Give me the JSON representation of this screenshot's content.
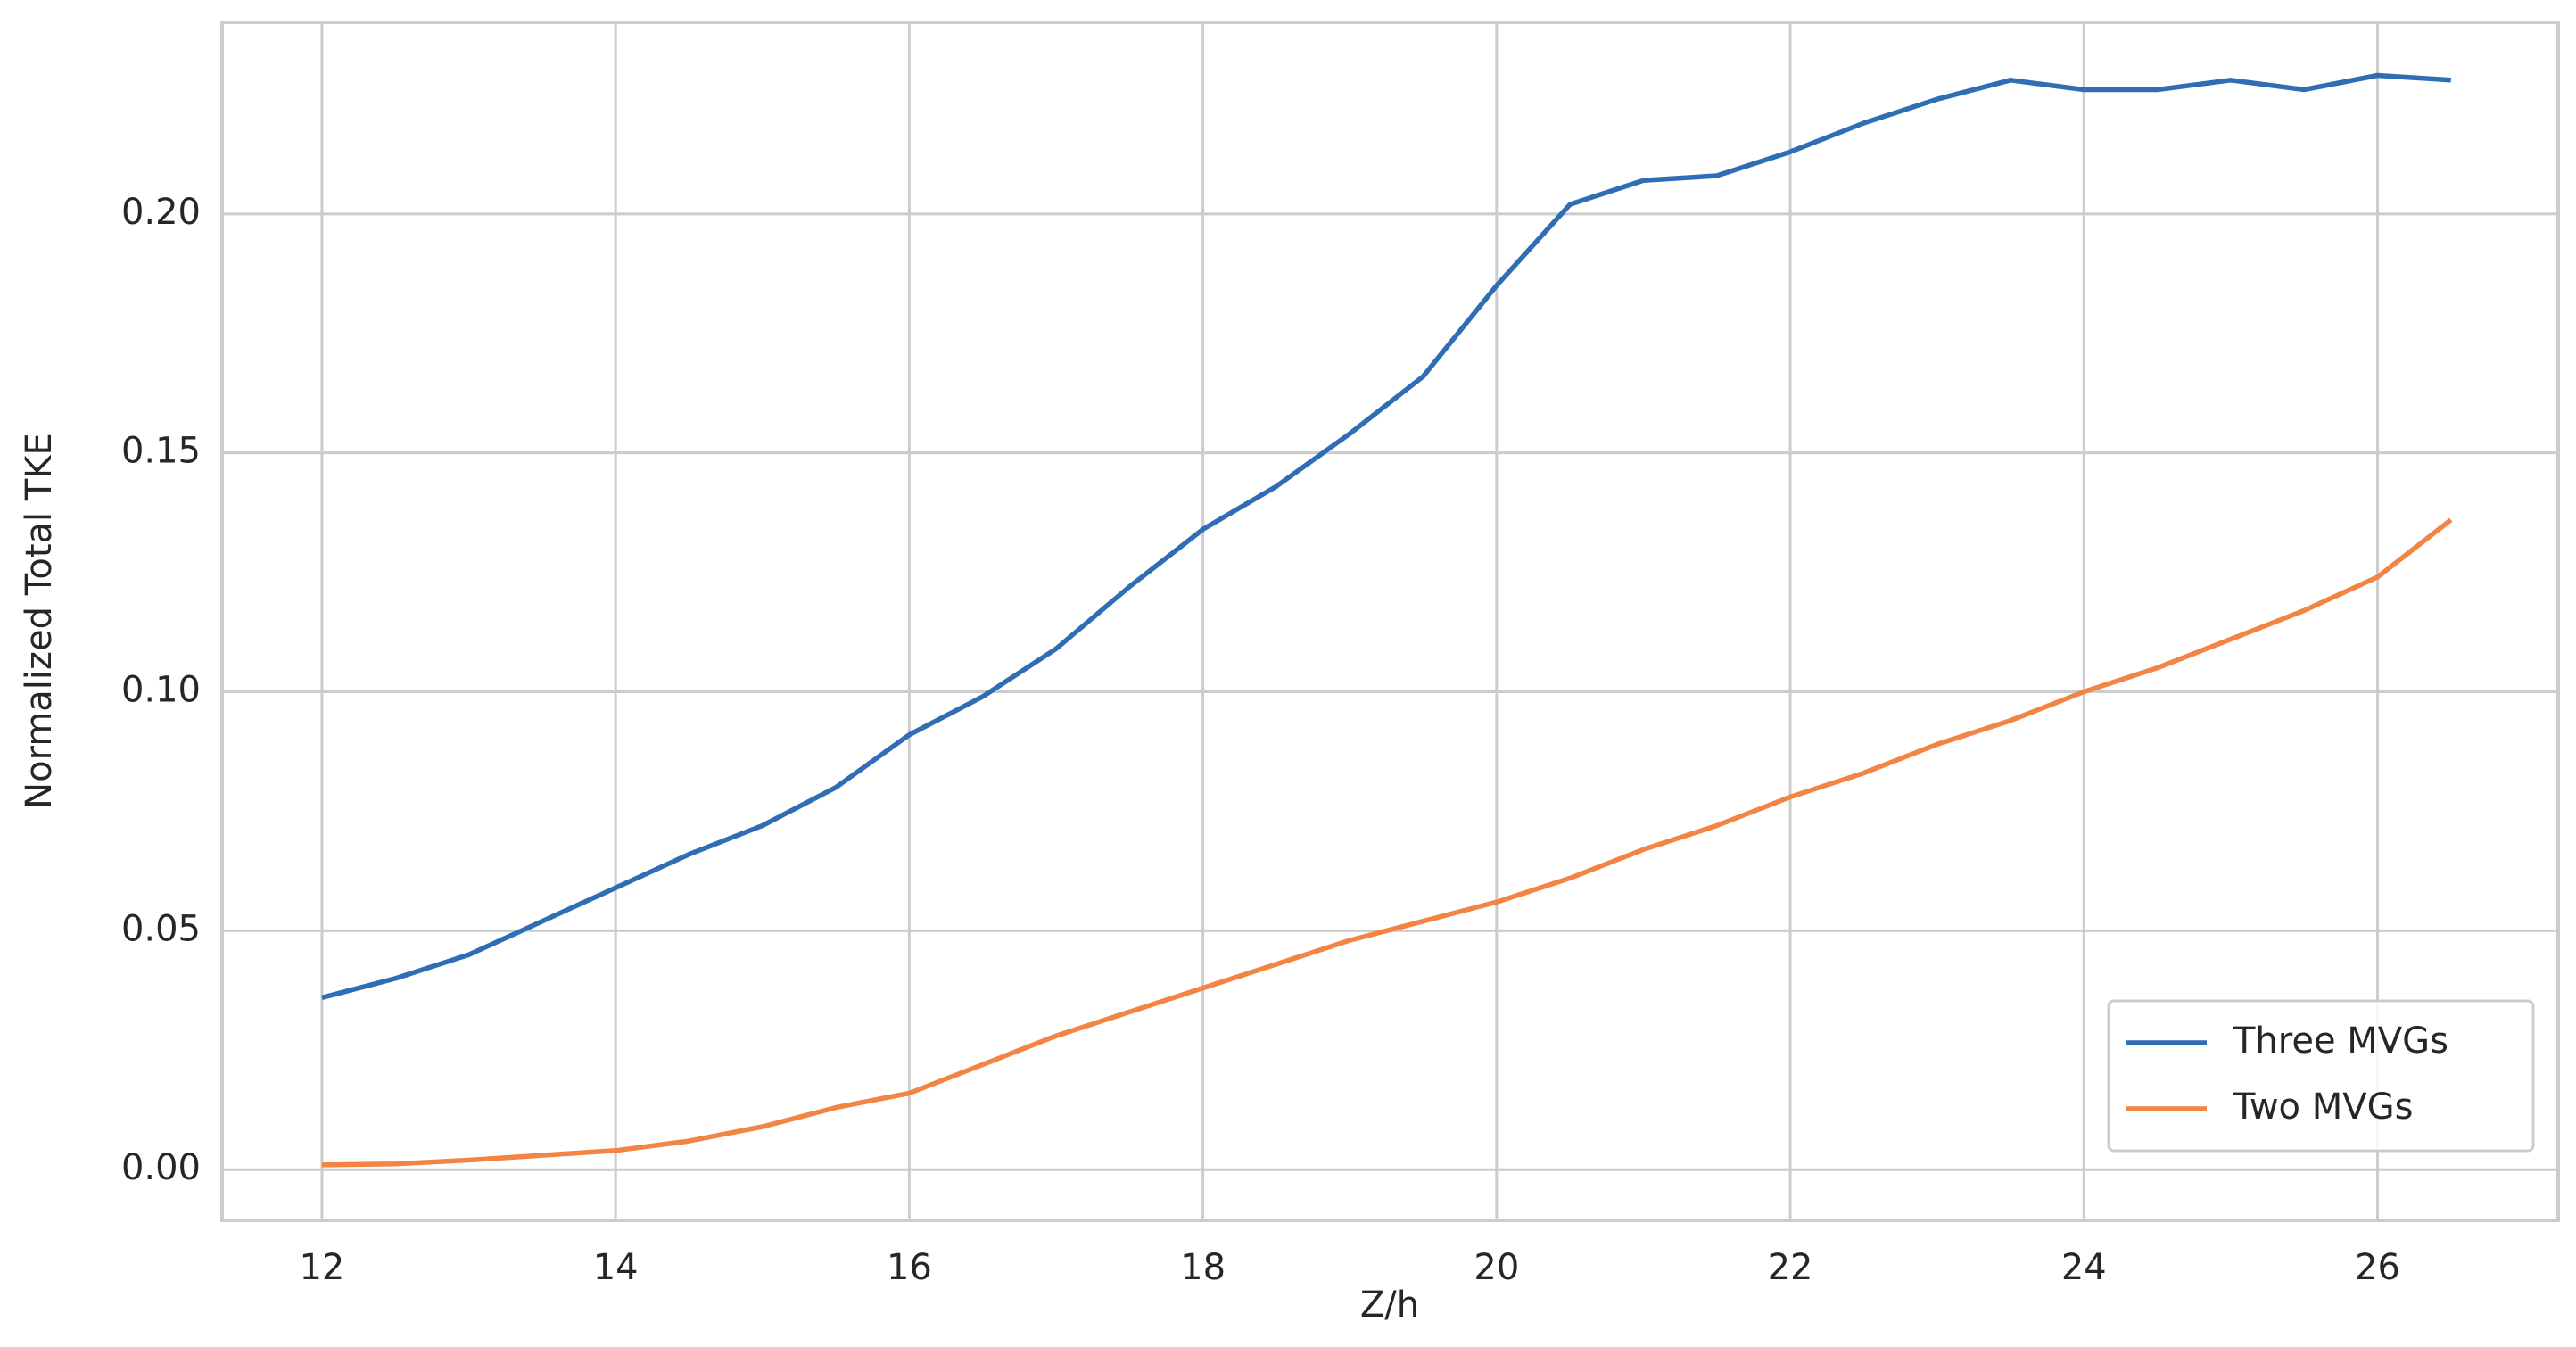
{
  "chart_data": {
    "type": "line",
    "x_label": "Z/h",
    "y_label": "Normalized Total TKE",
    "x": [
      12.0,
      12.5,
      13.0,
      13.5,
      14.0,
      14.5,
      15.0,
      15.5,
      16.0,
      16.5,
      17.0,
      17.5,
      18.0,
      18.5,
      19.0,
      19.5,
      20.0,
      20.5,
      21.0,
      21.5,
      22.0,
      22.5,
      23.0,
      23.5,
      24.0,
      24.5,
      25.0,
      25.5,
      26.0,
      26.5
    ],
    "series": [
      {
        "name": "Three MVGs",
        "color": "#2f6db5",
        "values": [
          0.036,
          0.04,
          0.045,
          0.052,
          0.059,
          0.066,
          0.072,
          0.08,
          0.091,
          0.099,
          0.109,
          0.122,
          0.134,
          0.143,
          0.154,
          0.166,
          0.185,
          0.202,
          0.207,
          0.208,
          0.213,
          0.219,
          0.224,
          0.228,
          0.226,
          0.226,
          0.228,
          0.226,
          0.229,
          0.228
        ]
      },
      {
        "name": "Two MVGs",
        "color": "#f28444",
        "values": [
          0.001,
          0.0012,
          0.002,
          0.003,
          0.004,
          0.006,
          0.009,
          0.013,
          0.016,
          0.022,
          0.028,
          0.033,
          0.038,
          0.043,
          0.048,
          0.052,
          0.056,
          0.061,
          0.067,
          0.072,
          0.078,
          0.083,
          0.089,
          0.094,
          0.1,
          0.105,
          0.111,
          0.117,
          0.124,
          0.136
        ]
      }
    ],
    "xlim": [
      11.32,
      27.23
    ],
    "ylim": [
      -0.0106,
      0.2401
    ],
    "xticks": [
      12,
      14,
      16,
      18,
      20,
      22,
      24,
      26
    ],
    "yticks": [
      {
        "value": 0,
        "label": "0.00"
      },
      0.05,
      {
        "value": 0.1,
        "label": "0.10"
      },
      0.15,
      {
        "value": 0.2,
        "label": "0.20"
      }
    ],
    "grid": true,
    "legend": "lower right"
  }
}
